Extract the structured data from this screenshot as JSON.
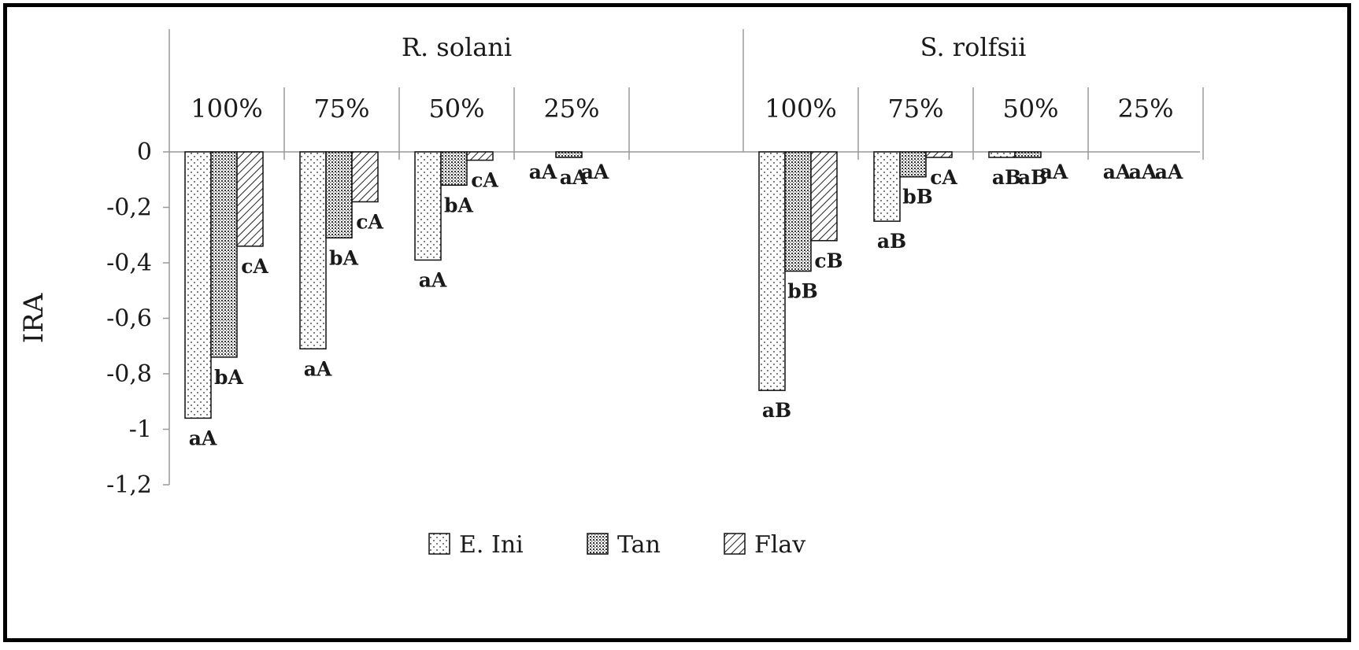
{
  "chart_data": {
    "type": "bar",
    "ylabel": "IRA",
    "ylim": [
      -1.2,
      0
    ],
    "yticks": [
      "0",
      "-0,2",
      "-0,4",
      "-0,6",
      "-0,8",
      "-1",
      "-1,2"
    ],
    "legend_position": "bottom",
    "groups": [
      {
        "name": "R. solani",
        "categories": [
          "100%",
          "75%",
          "50%",
          "25%"
        ],
        "series": [
          {
            "name": "E. Ini",
            "values": [
              -0.96,
              -0.71,
              -0.39,
              0
            ],
            "labels": [
              "aA",
              "aA",
              "aA",
              "aA"
            ]
          },
          {
            "name": "Tan",
            "values": [
              -0.74,
              -0.31,
              -0.12,
              -0.02
            ],
            "labels": [
              "bA",
              "bA",
              "bA",
              "aA"
            ]
          },
          {
            "name": "Flav",
            "values": [
              -0.34,
              -0.18,
              -0.03,
              0
            ],
            "labels": [
              "cA",
              "cA",
              "cA",
              "aA"
            ]
          }
        ]
      },
      {
        "name": "S. rolfsii",
        "categories": [
          "100%",
          "75%",
          "50%",
          "25%"
        ],
        "series": [
          {
            "name": "E. Ini",
            "values": [
              -0.86,
              -0.25,
              -0.02,
              0
            ],
            "labels": [
              "aB",
              "aB",
              "aB",
              "aA"
            ]
          },
          {
            "name": "Tan",
            "values": [
              -0.43,
              -0.09,
              -0.02,
              0
            ],
            "labels": [
              "bB",
              "bB",
              "aB",
              "aA"
            ]
          },
          {
            "name": "Flav",
            "values": [
              -0.32,
              -0.02,
              0,
              0
            ],
            "labels": [
              "cB",
              "cA",
              "aA",
              "aA"
            ]
          }
        ]
      }
    ],
    "legend": [
      "E. Ini",
      "Tan",
      "Flav"
    ]
  }
}
